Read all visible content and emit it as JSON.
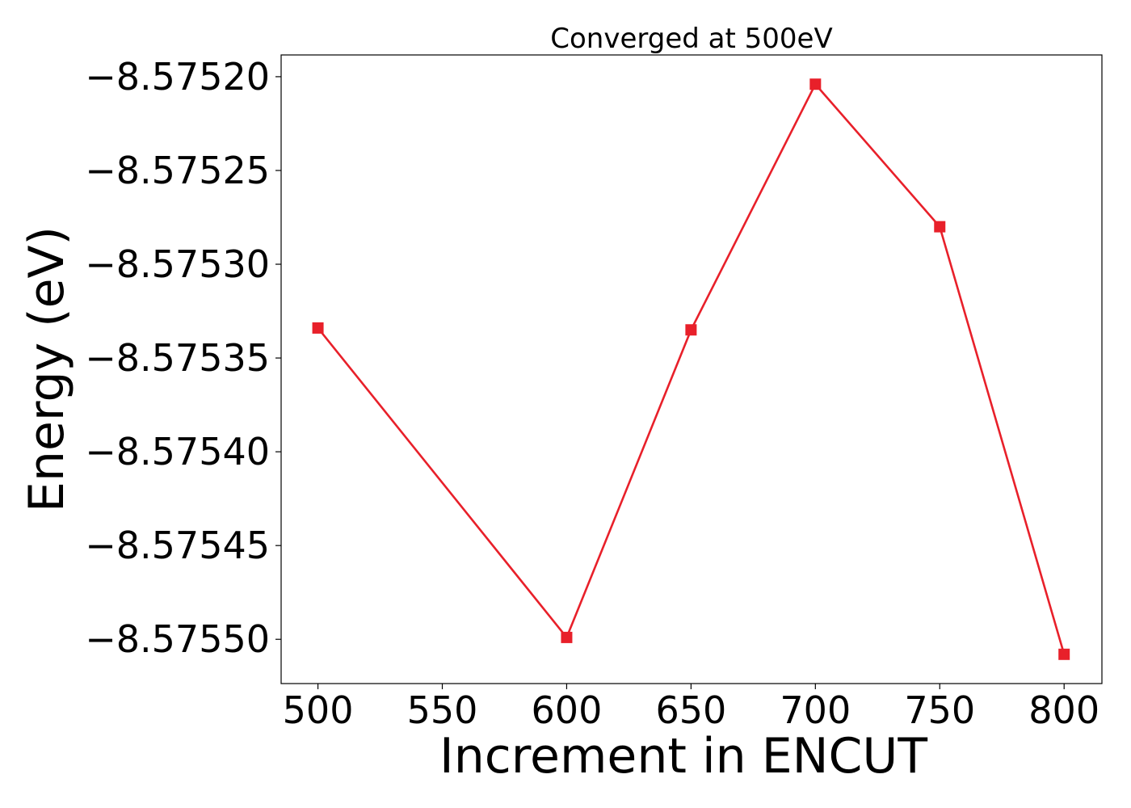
{
  "chart_data": {
    "type": "line",
    "title": "Converged at 500eV",
    "xlabel": "Increment in ENCUT",
    "ylabel": "Energy (eV)",
    "x": [
      500,
      600,
      650,
      700,
      750,
      800
    ],
    "series": [
      {
        "values": [
          -8.575334,
          -8.575499,
          -8.575335,
          -8.575204,
          -8.57528,
          -8.575508
        ],
        "color": "#e8202a",
        "marker": "square"
      }
    ],
    "xticks": [
      500,
      550,
      600,
      650,
      700,
      750,
      800
    ],
    "xtick_labels": [
      "500",
      "550",
      "600",
      "650",
      "700",
      "750",
      "800"
    ],
    "yticks": [
      -8.5752,
      -8.57525,
      -8.5753,
      -8.57535,
      -8.5754,
      -8.57545,
      -8.5755
    ],
    "ytick_labels": [
      "−8.57520",
      "−8.57525",
      "−8.57530",
      "−8.57535",
      "−8.57540",
      "−8.57545",
      "−8.57550"
    ],
    "xlim": [
      485.2,
      815.2
    ],
    "ylim": [
      -8.5755236,
      -8.5751884
    ],
    "grid": false,
    "legend": "none"
  }
}
